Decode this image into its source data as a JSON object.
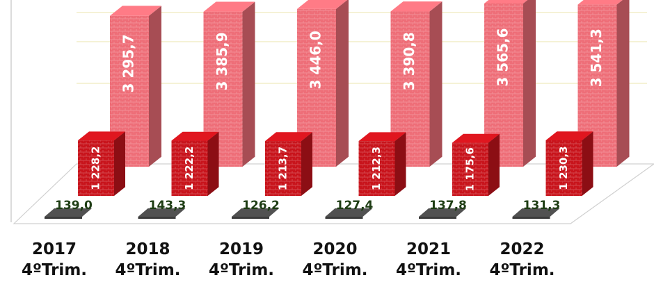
{
  "chart_data": {
    "type": "bar",
    "categories": [
      {
        "year": "2017",
        "period": "4ºTrim."
      },
      {
        "year": "2018",
        "period": "4ºTrim."
      },
      {
        "year": "2019",
        "period": "4ºTrim."
      },
      {
        "year": "2020",
        "period": "4ºTrim."
      },
      {
        "year": "2021",
        "period": "4ºTrim."
      },
      {
        "year": "2022",
        "period": "4ºTrim."
      }
    ],
    "series": [
      {
        "color": "#4a4a4a",
        "values": [
          139.0,
          143.3,
          126.2,
          127.4,
          137.8,
          131.3
        ],
        "labels": [
          "139,0",
          "143,3",
          "126,2",
          "127,4",
          "137,8",
          "131,3"
        ]
      },
      {
        "color": "#c8141c",
        "values": [
          1228.2,
          1222.2,
          1213.7,
          1212.3,
          1175.6,
          1230.3
        ],
        "labels": [
          "1 228,2",
          "1 222,2",
          "1 213,7",
          "1 212,3",
          "1 175,6",
          "1 230,3"
        ]
      },
      {
        "color": "#ee6e78",
        "values": [
          3295.7,
          3385.9,
          3446.0,
          3390.8,
          3565.6,
          3541.3
        ],
        "labels": [
          "3 295,7",
          "3 385,9",
          "3 446,0",
          "3 390,8",
          "3 565,6",
          "3 541,3"
        ]
      }
    ],
    "title": "",
    "xlabel": "",
    "ylabel": "",
    "grid": true,
    "legend": "none"
  }
}
